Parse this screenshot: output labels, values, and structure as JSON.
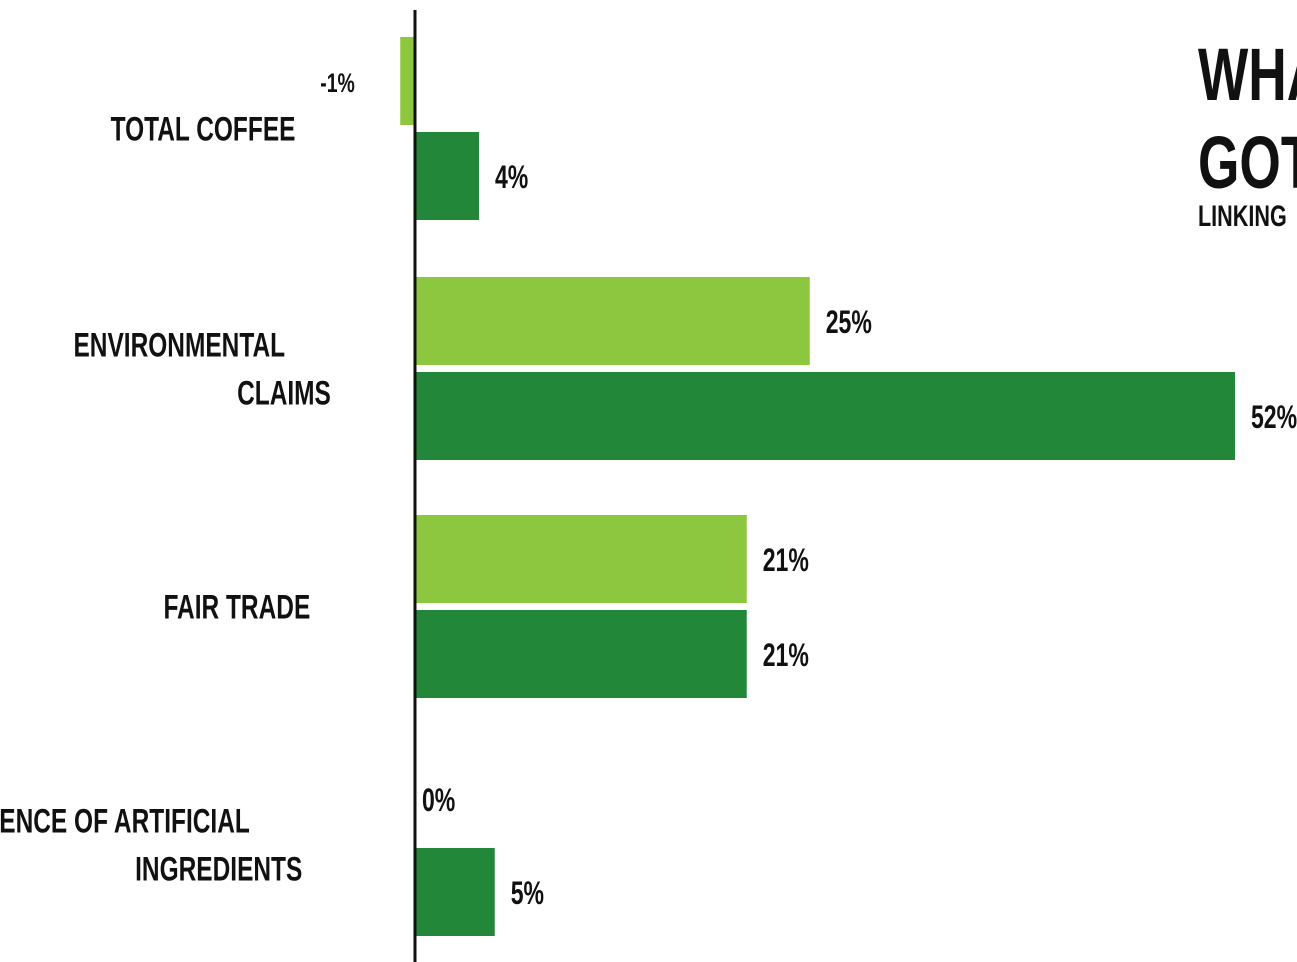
{
  "chart_data": {
    "type": "bar",
    "orientation": "horizontal",
    "title_lines": [
      "WHA",
      "GOT"
    ],
    "subtitle": "LINKING",
    "categories": [
      {
        "lines": [
          "TOTAL COFFEE"
        ]
      },
      {
        "lines": [
          "ENVIRONMENTAL",
          "CLAIMS"
        ]
      },
      {
        "lines": [
          "FAIR TRADE"
        ]
      },
      {
        "lines": [
          "ABSENCE OF ARTIFICIAL",
          "INGREDIENTS"
        ]
      }
    ],
    "series": [
      {
        "color": "#8dc63f",
        "values": [
          -1,
          25,
          21,
          0
        ],
        "labels": [
          "-1%",
          "25%",
          "21%",
          "0%"
        ]
      },
      {
        "color": "#23873a",
        "values": [
          4,
          52,
          21,
          5
        ],
        "labels": [
          "4%",
          "52%",
          "21%",
          "5%"
        ]
      }
    ],
    "xlim": [
      -1,
      52
    ],
    "unit": "%",
    "grid": false,
    "legend": "none"
  }
}
